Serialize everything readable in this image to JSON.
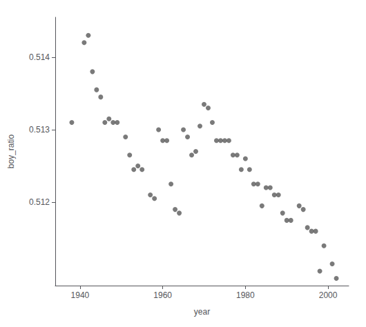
{
  "chart_data": {
    "type": "scatter",
    "x": [
      1938,
      1941,
      1942,
      1943,
      1944,
      1945,
      1946,
      1947,
      1948,
      1949,
      1951,
      1952,
      1953,
      1954,
      1955,
      1957,
      1958,
      1959,
      1960,
      1961,
      1962,
      1963,
      1964,
      1965,
      1966,
      1967,
      1968,
      1969,
      1970,
      1971,
      1972,
      1973,
      1974,
      1975,
      1976,
      1977,
      1978,
      1979,
      1980,
      1981,
      1982,
      1983,
      1984,
      1985,
      1986,
      1987,
      1988,
      1989,
      1990,
      1991,
      1993,
      1994,
      1995,
      1996,
      1997,
      1998,
      1999,
      2001,
      2002
    ],
    "values": [
      0.5131,
      0.5142,
      0.5143,
      0.5138,
      0.51355,
      0.51345,
      0.5131,
      0.51315,
      0.5131,
      0.5131,
      0.5129,
      0.51265,
      0.51245,
      0.5125,
      0.51245,
      0.5121,
      0.51205,
      0.513,
      0.51285,
      0.51285,
      0.51225,
      0.5119,
      0.51185,
      0.513,
      0.5129,
      0.51265,
      0.5127,
      0.51305,
      0.51335,
      0.5133,
      0.5131,
      0.51285,
      0.51285,
      0.51285,
      0.51285,
      0.51265,
      0.51265,
      0.51245,
      0.5126,
      0.51245,
      0.51225,
      0.51225,
      0.51195,
      0.5122,
      0.5122,
      0.5121,
      0.5121,
      0.51185,
      0.51175,
      0.51175,
      0.51195,
      0.5119,
      0.51165,
      0.5116,
      0.5116,
      0.51105,
      0.5114,
      0.51115,
      0.51095
    ],
    "color": "#595959",
    "xlabel": "year",
    "ylabel": "boy_ratio",
    "xlim": [
      1934,
      2005
    ],
    "ylim": [
      0.51085,
      0.51455
    ],
    "xticks": [
      1940,
      1960,
      1980,
      2000
    ],
    "yticks": [
      0.512,
      0.513,
      0.514
    ],
    "grid": false
  }
}
